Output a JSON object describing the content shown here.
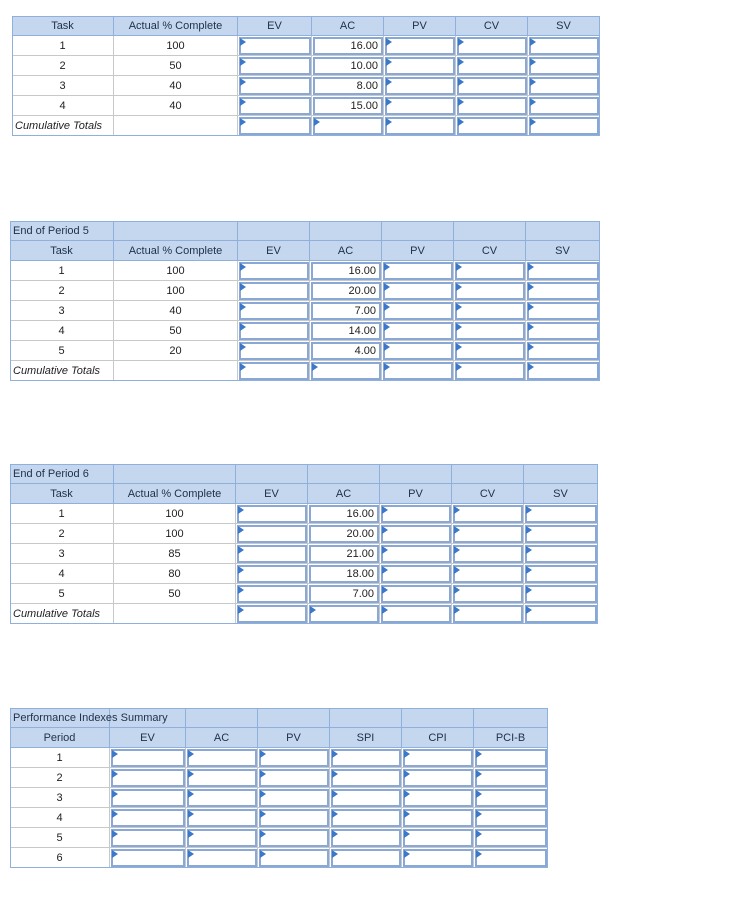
{
  "tables": [
    {
      "header": [
        "Task",
        "Actual % Complete",
        "EV",
        "AC",
        "PV",
        "CV",
        "SV"
      ],
      "rows": [
        {
          "task": 1,
          "complete": 100,
          "ac": "16.00"
        },
        {
          "task": 2,
          "complete": 50,
          "ac": "10.00"
        },
        {
          "task": 3,
          "complete": 40,
          "ac": "8.00"
        },
        {
          "task": 4,
          "complete": 40,
          "ac": "15.00"
        }
      ],
      "totals_label": "Cumulative Totals"
    },
    {
      "title": "End of Period 5",
      "header": [
        "Task",
        "Actual % Complete",
        "EV",
        "AC",
        "PV",
        "CV",
        "SV"
      ],
      "rows": [
        {
          "task": 1,
          "complete": 100,
          "ac": "16.00"
        },
        {
          "task": 2,
          "complete": 100,
          "ac": "20.00"
        },
        {
          "task": 3,
          "complete": 40,
          "ac": "7.00"
        },
        {
          "task": 4,
          "complete": 50,
          "ac": "14.00"
        },
        {
          "task": 5,
          "complete": 20,
          "ac": "4.00"
        }
      ],
      "totals_label": "Cumulative Totals"
    },
    {
      "title": "End of Period 6",
      "header": [
        "Task",
        "Actual % Complete",
        "EV",
        "AC",
        "PV",
        "CV",
        "SV"
      ],
      "rows": [
        {
          "task": 1,
          "complete": 100,
          "ac": "16.00"
        },
        {
          "task": 2,
          "complete": 100,
          "ac": "20.00"
        },
        {
          "task": 3,
          "complete": 85,
          "ac": "21.00"
        },
        {
          "task": 4,
          "complete": 80,
          "ac": "18.00"
        },
        {
          "task": 5,
          "complete": 50,
          "ac": "7.00"
        }
      ],
      "totals_label": "Cumulative Totals"
    }
  ],
  "summary": {
    "title": "Performance Indexes Summary",
    "header": [
      "Period",
      "EV",
      "AC",
      "PV",
      "SPI",
      "CPI",
      "PCI-B"
    ],
    "rows": [
      1,
      2,
      3,
      4,
      5,
      6
    ]
  }
}
